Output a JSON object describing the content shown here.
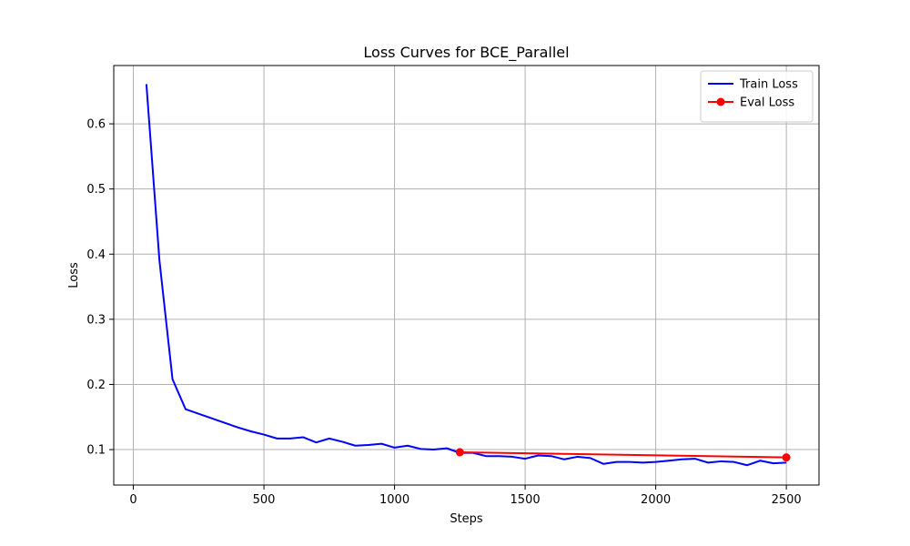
{
  "chart_data": {
    "type": "line",
    "title": "Loss Curves for BCE_Parallel",
    "xlabel": "Steps",
    "ylabel": "Loss",
    "xlim": [
      -75,
      2625
    ],
    "ylim": [
      0.0456,
      0.6895
    ],
    "xticks": [
      0,
      500,
      1000,
      1500,
      2000,
      2500
    ],
    "yticks": [
      0.1,
      0.2,
      0.3,
      0.4,
      0.5,
      0.6
    ],
    "grid": true,
    "legend_position": "top-right",
    "series": [
      {
        "name": "Train Loss",
        "color": "#0000ff",
        "marker": "none",
        "x": [
          50,
          100,
          150,
          200,
          250,
          300,
          350,
          400,
          450,
          500,
          550,
          600,
          650,
          700,
          750,
          800,
          850,
          900,
          950,
          1000,
          1050,
          1100,
          1150,
          1200,
          1250,
          1300,
          1350,
          1400,
          1450,
          1500,
          1550,
          1600,
          1650,
          1700,
          1750,
          1800,
          1850,
          1900,
          1950,
          2000,
          2050,
          2100,
          2150,
          2200,
          2250,
          2300,
          2350,
          2400,
          2450,
          2500
        ],
        "y": [
          0.661,
          0.39,
          0.208,
          0.162,
          0.155,
          0.148,
          0.141,
          0.134,
          0.128,
          0.123,
          0.117,
          0.117,
          0.119,
          0.111,
          0.117,
          0.112,
          0.106,
          0.107,
          0.109,
          0.103,
          0.106,
          0.101,
          0.1,
          0.102,
          0.095,
          0.095,
          0.09,
          0.09,
          0.089,
          0.086,
          0.091,
          0.09,
          0.085,
          0.089,
          0.087,
          0.078,
          0.081,
          0.081,
          0.08,
          0.081,
          0.083,
          0.085,
          0.086,
          0.08,
          0.082,
          0.081,
          0.076,
          0.083,
          0.079,
          0.08
        ]
      },
      {
        "name": "Eval Loss",
        "color": "#ff0000",
        "marker": "circle",
        "x": [
          1250,
          2500
        ],
        "y": [
          0.096,
          0.088
        ]
      }
    ]
  }
}
